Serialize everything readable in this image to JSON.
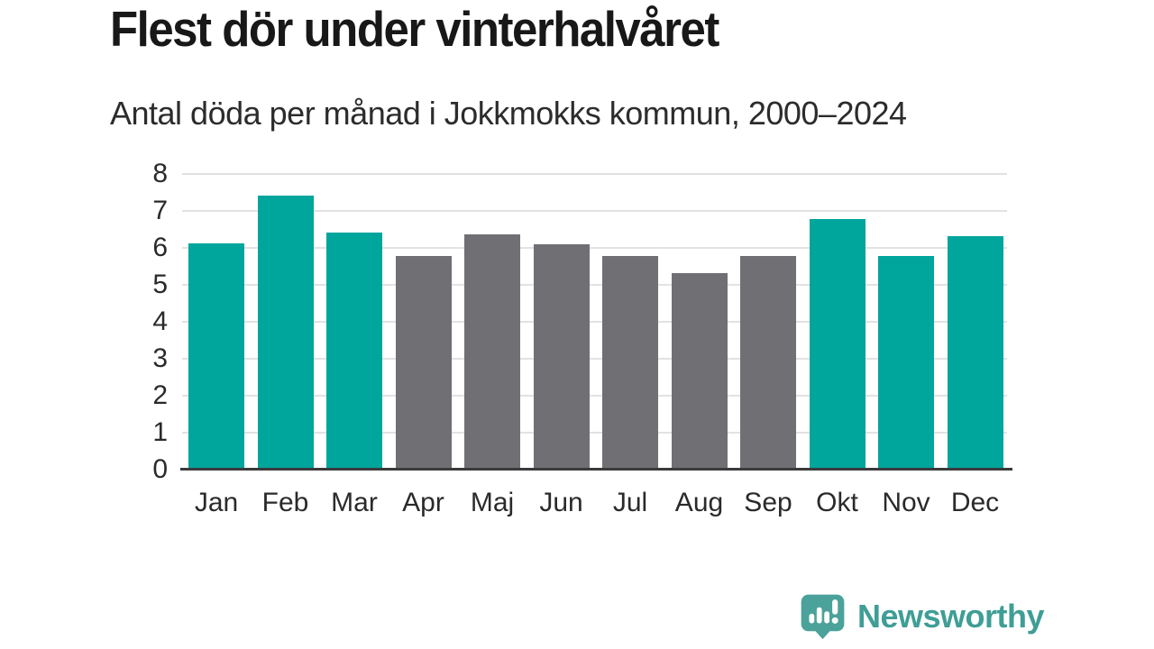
{
  "title": "Flest dör under vinterhalvåret",
  "subtitle": "Antal döda per månad i Jokkmokks kommun, 2000–2024",
  "chart_data": {
    "type": "bar",
    "categories": [
      "Jan",
      "Feb",
      "Mar",
      "Apr",
      "Maj",
      "Jun",
      "Jul",
      "Aug",
      "Sep",
      "Okt",
      "Nov",
      "Dec"
    ],
    "values": [
      6.13,
      7.42,
      6.42,
      5.79,
      6.36,
      6.09,
      5.79,
      5.31,
      5.79,
      6.77,
      5.77,
      6.32
    ],
    "bar_groups": [
      "winter",
      "winter",
      "winter",
      "summer",
      "summer",
      "summer",
      "summer",
      "summer",
      "summer",
      "winter",
      "winter",
      "winter"
    ],
    "group_colors": {
      "winter": "#00A59C",
      "summer": "#706F74"
    },
    "title": "Flest dör under vinterhalvåret",
    "subtitle": "Antal döda per månad i Jokkmokks kommun, 2000–2024",
    "xlabel": "",
    "ylabel": "",
    "ylim": [
      0,
      8
    ],
    "yticks": [
      0,
      1,
      2,
      3,
      4,
      5,
      6,
      7,
      8
    ],
    "grid": true,
    "grid_color": "#e2e2e2",
    "axis_color": "#3b3b3b",
    "legend": "none"
  },
  "footer": {
    "brand": "Newsworthy",
    "brand_color": "#3f9e96",
    "logo_icon": "speech-bubble-bar-chart-icon"
  }
}
